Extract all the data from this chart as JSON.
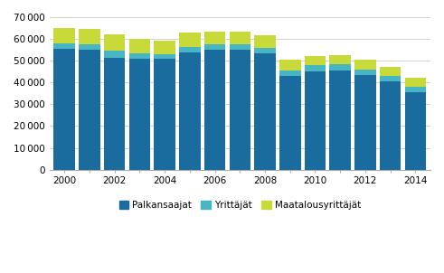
{
  "years": [
    2000,
    2001,
    2002,
    2003,
    2004,
    2005,
    2006,
    2007,
    2008,
    2009,
    2010,
    2011,
    2012,
    2013,
    2014
  ],
  "palkansaajat": [
    55500,
    55000,
    51500,
    51000,
    51000,
    54000,
    55000,
    55000,
    53500,
    43000,
    45000,
    45500,
    43500,
    40500,
    35500
  ],
  "yrittajat": [
    2500,
    2500,
    3000,
    2500,
    2000,
    2500,
    2500,
    2500,
    2500,
    2500,
    3000,
    3000,
    2500,
    2500,
    2500
  ],
  "maatalousyrittajat": [
    7000,
    7000,
    7500,
    6500,
    6000,
    6500,
    6000,
    6000,
    5500,
    5000,
    4000,
    4000,
    4500,
    4000,
    4000
  ],
  "color_palkansaajat": "#1a6b9e",
  "color_yrittajat": "#47b5c2",
  "color_maatalous": "#c8d93a",
  "ylim": [
    0,
    70000
  ],
  "yticks": [
    0,
    10000,
    20000,
    30000,
    40000,
    50000,
    60000,
    70000
  ],
  "xtick_labels": [
    "2000",
    "",
    "2002",
    "",
    "2004",
    "",
    "2006",
    "",
    "2008",
    "",
    "2010",
    "",
    "2012",
    "",
    "2014"
  ],
  "legend_labels": [
    "Palkansaajat",
    "Yrittäjät",
    "Maatalousyrittäjät"
  ],
  "background_color": "#ffffff",
  "grid_color": "#cccccc"
}
